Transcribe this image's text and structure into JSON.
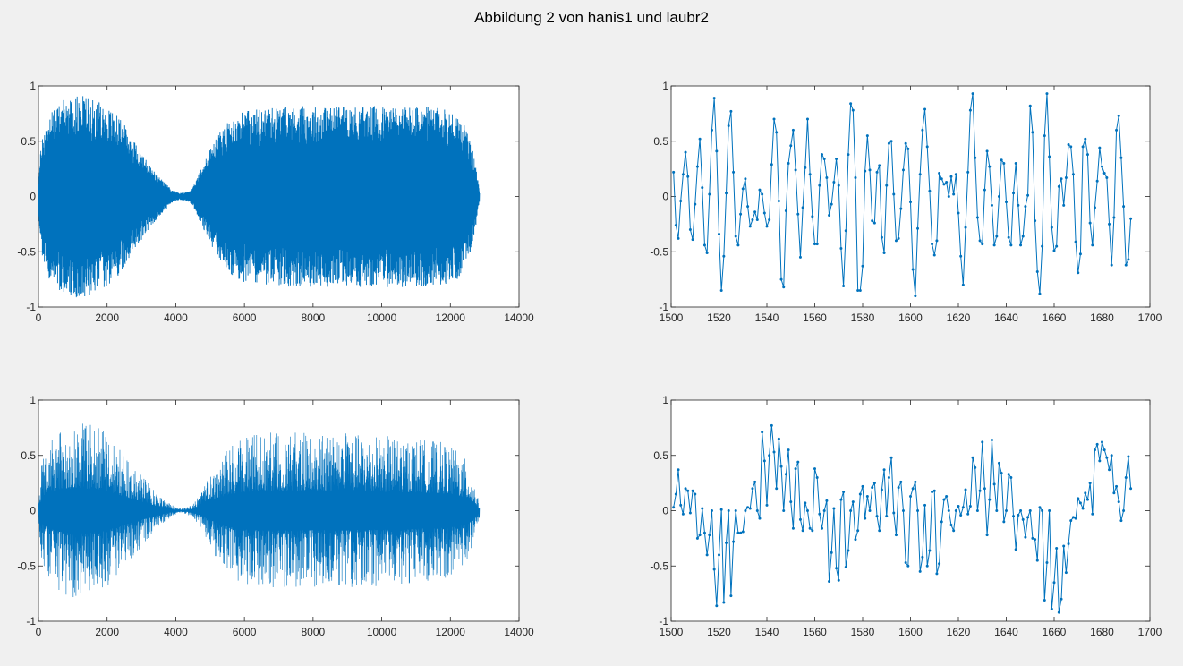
{
  "figure": {
    "title": "Abbildung 2 von hanis1 und laubr2",
    "line_color": "#0072bd",
    "axes_background": "#ffffff",
    "figure_background": "#f0f0f0"
  },
  "chart_data": [
    {
      "type": "line",
      "panel": "top-left",
      "xlim": [
        0,
        14000
      ],
      "ylim": [
        -1,
        1
      ],
      "xticks": [
        0,
        2000,
        4000,
        6000,
        8000,
        10000,
        12000,
        14000
      ],
      "yticks": [
        -1,
        -0.5,
        0,
        0.5,
        1
      ],
      "xtick_labels": [
        "0",
        "2000",
        "4000",
        "6000",
        "8000",
        "10000",
        "12000",
        "14000"
      ],
      "ytick_labels": [
        "-1",
        "-0.5",
        "0",
        "0.5",
        "1"
      ],
      "signal_end": 12850,
      "envelope": {
        "x": [
          0,
          100,
          300,
          600,
          900,
          1200,
          1600,
          2000,
          2400,
          2800,
          3200,
          3600,
          3900,
          4100,
          4300,
          4500,
          4800,
          5200,
          5600,
          6000,
          7000,
          8000,
          9000,
          10000,
          11000,
          11800,
          12200,
          12500,
          12700,
          12850
        ],
        "y": [
          0.15,
          0.55,
          0.75,
          0.85,
          0.9,
          0.92,
          0.88,
          0.82,
          0.7,
          0.5,
          0.3,
          0.15,
          0.06,
          0.03,
          0.04,
          0.08,
          0.3,
          0.55,
          0.7,
          0.78,
          0.82,
          0.82,
          0.82,
          0.82,
          0.82,
          0.8,
          0.75,
          0.6,
          0.35,
          0.05
        ]
      },
      "peak_y": [
        -1,
        1
      ]
    },
    {
      "type": "line",
      "panel": "top-right",
      "markers": true,
      "xlim": [
        1500,
        1700
      ],
      "ylim": [
        -1,
        1
      ],
      "xticks": [
        1500,
        1520,
        1540,
        1560,
        1580,
        1600,
        1620,
        1640,
        1660,
        1680,
        1700
      ],
      "yticks": [
        -1,
        -0.5,
        0,
        0.5,
        1
      ],
      "xtick_labels": [
        "1500",
        "1520",
        "1540",
        "1560",
        "1580",
        "1600",
        "1620",
        "1640",
        "1660",
        "1680",
        "1700"
      ],
      "ytick_labels": [
        "-1",
        "-0.5",
        "0",
        "0.5",
        "1"
      ],
      "x_start": 1501,
      "y": [
        0.22,
        -0.26,
        -0.38,
        -0.04,
        0.2,
        0.4,
        0.18,
        -0.3,
        -0.39,
        -0.07,
        0.27,
        0.52,
        0.08,
        -0.44,
        -0.51,
        0.02,
        0.6,
        0.89,
        0.41,
        -0.34,
        -0.85,
        -0.54,
        0.03,
        0.64,
        0.77,
        0.22,
        -0.36,
        -0.44,
        -0.16,
        0.07,
        0.16,
        -0.09,
        -0.27,
        -0.21,
        -0.14,
        -0.21,
        0.06,
        0.02,
        -0.15,
        -0.27,
        -0.21,
        0.29,
        0.7,
        0.58,
        -0.04,
        -0.75,
        -0.82,
        -0.13,
        0.3,
        0.46,
        0.6,
        0.24,
        -0.16,
        -0.55,
        -0.1,
        0.26,
        0.7,
        0.2,
        -0.18,
        -0.43,
        -0.43,
        0.1,
        0.38,
        0.34,
        0.17,
        -0.17,
        -0.07,
        0.13,
        0.34,
        0.1,
        -0.47,
        -0.81,
        -0.31,
        0.38,
        0.84,
        0.78,
        0.17,
        -0.85,
        -0.85,
        -0.63,
        0.23,
        0.55,
        0.24,
        -0.22,
        -0.24,
        0.22,
        0.28,
        -0.37,
        -0.51,
        0.1,
        0.48,
        0.5,
        0.02,
        -0.4,
        -0.38,
        -0.11,
        0.24,
        0.48,
        0.43,
        -0.05,
        -0.66,
        -0.9,
        -0.29,
        0.2,
        0.6,
        0.79,
        0.45,
        0.05,
        -0.43,
        -0.53,
        -0.4,
        0.21,
        0.16,
        0.11,
        0.13,
        0.0,
        0.18,
        0.02,
        0.2,
        -0.15,
        -0.54,
        -0.8,
        -0.28,
        0.22,
        0.78,
        0.93,
        0.35,
        -0.19,
        -0.4,
        -0.43,
        0.06,
        0.41,
        0.27,
        -0.08,
        -0.44,
        -0.36,
        0.0,
        0.33,
        0.3,
        -0.05,
        -0.37,
        -0.44,
        0.03,
        0.3,
        -0.08,
        -0.44,
        -0.36,
        -0.09,
        0.01,
        0.82,
        0.58,
        -0.22,
        -0.68,
        -0.88,
        -0.45,
        0.55,
        0.93,
        0.36,
        -0.28,
        -0.49,
        -0.45,
        0.09,
        0.16,
        -0.08,
        0.17,
        0.47,
        0.45,
        0.2,
        -0.41,
        -0.69,
        -0.52,
        0.45,
        0.52,
        0.38,
        -0.24,
        -0.44,
        -0.1,
        0.14,
        0.44,
        0.27,
        0.21,
        0.17,
        -0.25,
        -0.62,
        -0.19,
        0.6,
        0.73,
        0.35,
        -0.09,
        -0.62,
        -0.57,
        -0.2
      ]
    },
    {
      "type": "line",
      "panel": "bottom-left",
      "xlim": [
        0,
        14000
      ],
      "ylim": [
        -1,
        1
      ],
      "xticks": [
        0,
        2000,
        4000,
        6000,
        8000,
        10000,
        12000,
        14000
      ],
      "yticks": [
        -1,
        -0.5,
        0,
        0.5,
        1
      ],
      "xtick_labels": [
        "0",
        "2000",
        "4000",
        "6000",
        "8000",
        "10000",
        "12000",
        "14000"
      ],
      "ytick_labels": [
        "-1",
        "-0.5",
        "0",
        "0.5",
        "1"
      ],
      "signal_end": 12850,
      "envelope": {
        "x": [
          0,
          100,
          300,
          600,
          900,
          1200,
          1600,
          2000,
          2400,
          2800,
          3200,
          3600,
          3900,
          4100,
          4300,
          4500,
          4800,
          5200,
          5600,
          6000,
          7000,
          8000,
          9000,
          10000,
          11000,
          11800,
          12200,
          12500,
          12700,
          12850
        ],
        "y": [
          0.1,
          0.45,
          0.65,
          0.75,
          0.8,
          0.82,
          0.78,
          0.7,
          0.55,
          0.4,
          0.25,
          0.12,
          0.05,
          0.02,
          0.03,
          0.06,
          0.2,
          0.45,
          0.6,
          0.68,
          0.72,
          0.7,
          0.7,
          0.68,
          0.66,
          0.62,
          0.55,
          0.45,
          0.25,
          0.05
        ]
      },
      "peak_y": [
        -0.95,
        1
      ]
    },
    {
      "type": "line",
      "panel": "bottom-right",
      "markers": true,
      "xlim": [
        1500,
        1700
      ],
      "ylim": [
        -1,
        1
      ],
      "xticks": [
        1500,
        1520,
        1540,
        1560,
        1580,
        1600,
        1620,
        1640,
        1660,
        1680,
        1700
      ],
      "yticks": [
        -1,
        -0.5,
        0,
        0.5,
        1
      ],
      "xtick_labels": [
        "1500",
        "1520",
        "1540",
        "1560",
        "1580",
        "1600",
        "1620",
        "1640",
        "1660",
        "1680",
        "1700"
      ],
      "ytick_labels": [
        "-1",
        "-0.5",
        "0",
        "0.5",
        "1"
      ],
      "x_start": 1501,
      "y": [
        0.03,
        0.15,
        0.37,
        0.05,
        -0.03,
        0.2,
        0.18,
        -0.02,
        0.18,
        0.15,
        -0.25,
        -0.22,
        0.02,
        -0.2,
        -0.4,
        -0.22,
        0.0,
        -0.53,
        -0.86,
        -0.4,
        0.01,
        -0.83,
        -0.29,
        0.0,
        -0.77,
        -0.28,
        0.0,
        -0.2,
        -0.2,
        -0.19,
        0.0,
        0.03,
        0.02,
        0.2,
        0.26,
        0.0,
        -0.07,
        0.71,
        0.45,
        0.05,
        0.5,
        0.77,
        0.53,
        0.2,
        0.65,
        0.4,
        0.0,
        0.33,
        0.55,
        0.08,
        -0.16,
        0.38,
        0.44,
        -0.08,
        -0.18,
        0.07,
        0.0,
        -0.16,
        -0.18,
        0.38,
        0.3,
        -0.03,
        -0.16,
        0.0,
        0.09,
        -0.64,
        -0.38,
        0.02,
        -0.52,
        -0.63,
        0.1,
        0.17,
        -0.51,
        -0.36,
        0.0,
        0.08,
        -0.26,
        -0.18,
        0.15,
        0.22,
        -0.07,
        0.13,
        0.0,
        0.21,
        0.25,
        -0.05,
        -0.18,
        0.19,
        0.37,
        -0.05,
        0.3,
        0.48,
        -0.02,
        -0.22,
        0.21,
        0.26,
        0.0,
        -0.47,
        -0.5,
        0.13,
        0.2,
        0.26,
        0.0,
        -0.55,
        -0.42,
        0.05,
        -0.5,
        -0.36,
        0.17,
        0.18,
        -0.57,
        -0.48,
        -0.1,
        0.1,
        0.13,
        0.0,
        -0.13,
        -0.18,
        0.0,
        0.04,
        -0.04,
        0.03,
        0.19,
        -0.03,
        0.04,
        0.48,
        0.39,
        0.0,
        0.18,
        0.62,
        0.2,
        -0.22,
        0.1,
        0.64,
        0.24,
        0.0,
        0.43,
        0.34,
        -0.1,
        0.0,
        0.33,
        0.3,
        -0.05,
        -0.35,
        -0.04,
        0.0,
        -0.08,
        -0.24,
        -0.06,
        0.0,
        -0.25,
        -0.26,
        -0.45,
        0.03,
        0.0,
        -0.81,
        -0.47,
        0.0,
        -0.89,
        -0.65,
        -0.34,
        -0.92,
        -0.8,
        -0.32,
        -0.56,
        -0.3,
        -0.09,
        -0.06,
        -0.07,
        0.11,
        0.07,
        0.02,
        0.16,
        0.1,
        0.25,
        -0.03,
        0.55,
        0.6,
        0.45,
        0.62,
        0.55,
        0.48,
        0.37,
        0.5,
        0.16,
        0.22,
        0.08,
        -0.09,
        0.0,
        0.3,
        0.49,
        0.2
      ]
    }
  ]
}
